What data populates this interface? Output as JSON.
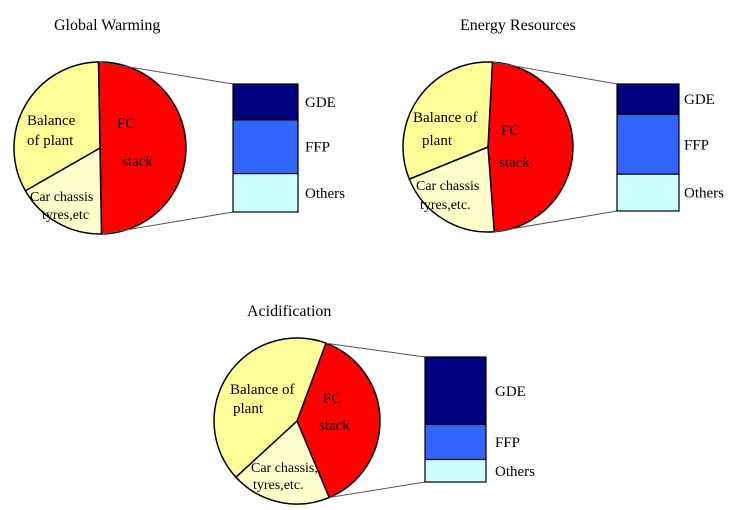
{
  "colors": {
    "fc_stack": "#FF0000",
    "balance_of_plant": "#FFFF99",
    "car_chassis": "#FFFFCC",
    "gde": "#000080",
    "ffp": "#3366FF",
    "others": "#CCFFFF",
    "outline": "#000000",
    "connector": "#555555"
  },
  "chart_data": [
    {
      "type": "pie",
      "title": "Global Warming",
      "slices": [
        {
          "label": "FC stack",
          "label_lines": [
            "FC",
            "stack"
          ],
          "value": 50,
          "color": "#FF0000"
        },
        {
          "label": "Car chassis tyres,etc",
          "label_lines": [
            "Car chassis",
            "tyres,etc"
          ],
          "value": 17,
          "color": "#FFFFCC"
        },
        {
          "label": "Balance of plant",
          "label_lines": [
            "Balance",
            "of plant"
          ],
          "value": 33,
          "color": "#FFFF99"
        }
      ],
      "breakdown_of": "FC stack",
      "bar": {
        "type": "stacked-bar",
        "segments": [
          {
            "label": "GDE",
            "value": 28,
            "color": "#000080"
          },
          {
            "label": "FFP",
            "value": 42,
            "color": "#3366FF"
          },
          {
            "label": "Others",
            "value": 30,
            "color": "#CCFFFF"
          }
        ]
      }
    },
    {
      "type": "pie",
      "title": "Energy Resources",
      "slices": [
        {
          "label": "FC stack",
          "label_lines": [
            "FC",
            "stack"
          ],
          "value": 48,
          "color": "#FF0000"
        },
        {
          "label": "Car chassis tyres,etc.",
          "label_lines": [
            "Car chassis",
            "tyres,etc."
          ],
          "value": 20,
          "color": "#FFFFCC"
        },
        {
          "label": "Balance of plant",
          "label_lines": [
            "Balance of",
            "plant"
          ],
          "value": 32,
          "color": "#FFFF99"
        }
      ],
      "breakdown_of": "FC stack",
      "bar": {
        "type": "stacked-bar",
        "segments": [
          {
            "label": "GDE",
            "value": 24,
            "color": "#000080"
          },
          {
            "label": "FFP",
            "value": 47,
            "color": "#3366FF"
          },
          {
            "label": "Others",
            "value": 29,
            "color": "#CCFFFF"
          }
        ]
      }
    },
    {
      "type": "pie",
      "title": "Acidification",
      "slices": [
        {
          "label": "FC stack",
          "label_lines": [
            "FC",
            "stack"
          ],
          "value": 38,
          "color": "#FF0000"
        },
        {
          "label": "Car chassis tyres,etc.",
          "label_lines": [
            "Car chassis,",
            "tyres,etc."
          ],
          "value": 19.5,
          "color": "#FFFFCC"
        },
        {
          "label": "Balance of plant",
          "label_lines": [
            "Balance of",
            "plant"
          ],
          "value": 42.5,
          "color": "#FFFF99"
        }
      ],
      "breakdown_of": "FC stack",
      "bar": {
        "type": "stacked-bar",
        "segments": [
          {
            "label": "GDE",
            "value": 54,
            "color": "#000080"
          },
          {
            "label": "FFP",
            "value": 28,
            "color": "#3366FF"
          },
          {
            "label": "Others",
            "value": 18,
            "color": "#CCFFFF"
          }
        ]
      }
    }
  ]
}
